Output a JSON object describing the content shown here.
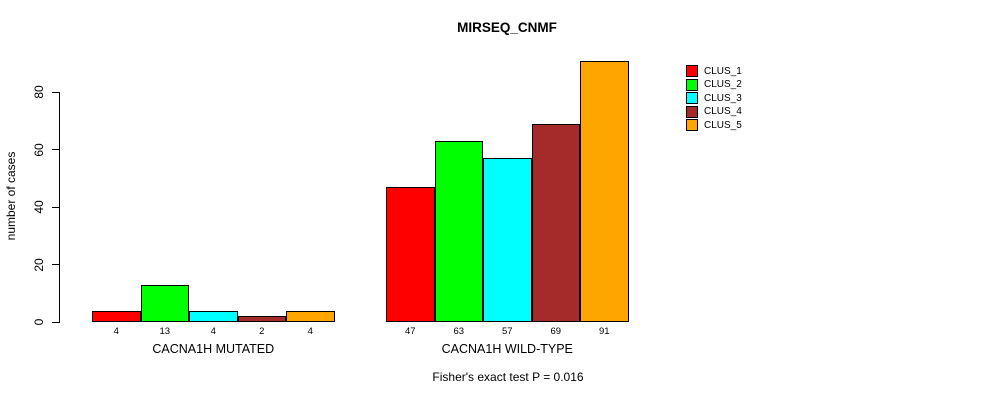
{
  "chart_data": {
    "type": "bar",
    "title": "MIRSEQ_CNMF",
    "ylabel": "number of cases",
    "footnote": "Fisher's exact test P = 0.016",
    "ylim": [
      0,
      80
    ],
    "yticks": [
      0,
      20,
      40,
      60,
      80
    ],
    "grid": false,
    "legend_position": "right-outside-top",
    "background": "#FFFFFF",
    "bar_border_color": "#000000",
    "groups": [
      {
        "label": "CACNA1H MUTATED",
        "values": [
          4,
          13,
          4,
          2,
          4
        ]
      },
      {
        "label": "CACNA1H WILD-TYPE",
        "values": [
          47,
          63,
          57,
          69,
          91
        ]
      }
    ],
    "series": [
      {
        "name": "CLUS_1",
        "color": "#FF0000"
      },
      {
        "name": "CLUS_2",
        "color": "#00FF00"
      },
      {
        "name": "CLUS_3",
        "color": "#00FFFF"
      },
      {
        "name": "CLUS_4",
        "color": "#A52A2A"
      },
      {
        "name": "CLUS_5",
        "color": "#FFA500"
      }
    ]
  }
}
